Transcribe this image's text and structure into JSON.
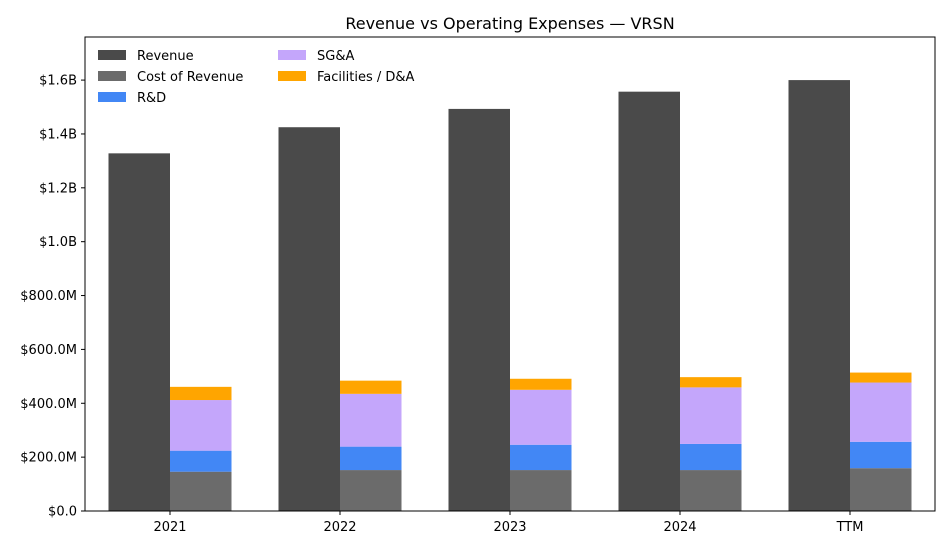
{
  "chart_data": {
    "type": "bar",
    "title": "Revenue vs Operating Expenses — VRSN",
    "xlabel": "",
    "ylabel": "",
    "categories": [
      "2021",
      "2022",
      "2023",
      "2024",
      "TTM"
    ],
    "ylim": [
      0,
      1760000000
    ],
    "yticks": [
      0,
      200000000,
      400000000,
      600000000,
      800000000,
      1000000000,
      1200000000,
      1400000000,
      1600000000
    ],
    "ytick_labels": [
      "$0.0",
      "$200.0M",
      "$400.0M",
      "$600.0M",
      "$800.0M",
      "$1.0B",
      "$1.2B",
      "$1.4B",
      "$1.6B"
    ],
    "grid": false,
    "legend_position": "top-left",
    "revenue_series": {
      "name": "Revenue",
      "color": "#4a4a4a",
      "values": [
        1328000000,
        1425000000,
        1493000000,
        1557000000,
        1600000000
      ]
    },
    "expense_series": [
      {
        "name": "Cost of Revenue",
        "color": "#6b6b6b",
        "values": [
          146000000,
          152000000,
          152000000,
          152000000,
          159000000
        ]
      },
      {
        "name": "R&D",
        "color": "#4287f5",
        "values": [
          78000000,
          87000000,
          94000000,
          97000000,
          98000000
        ]
      },
      {
        "name": "SG&A",
        "color": "#c4a6fb",
        "values": [
          188000000,
          196000000,
          204000000,
          210000000,
          220000000
        ]
      },
      {
        "name": "Facilities / D&A",
        "color": "#ffa500",
        "values": [
          49000000,
          49000000,
          41000000,
          38000000,
          37000000
        ]
      }
    ]
  }
}
